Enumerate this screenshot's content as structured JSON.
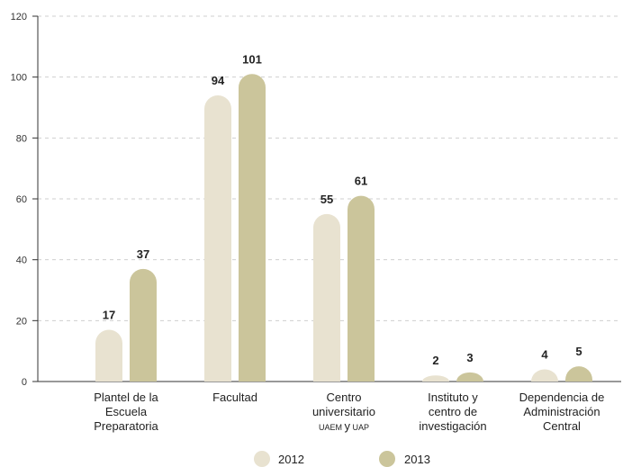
{
  "chart_data": {
    "type": "bar",
    "categories": [
      [
        "Plantel de la",
        "Escuela",
        "Preparatoria"
      ],
      [
        "Facultad"
      ],
      [
        "Centro",
        "universitario",
        "UAEM y UAP"
      ],
      [
        "Instituto y",
        "centro de",
        "investigación"
      ],
      [
        "Dependencia de",
        "Administración",
        "Central"
      ]
    ],
    "series": [
      {
        "name": "2012",
        "values": [
          17,
          94,
          55,
          2,
          4
        ],
        "color": "#e8e2d0"
      },
      {
        "name": "2013",
        "values": [
          37,
          101,
          61,
          3,
          5
        ],
        "color": "#cbc59b"
      }
    ],
    "ylim": [
      0,
      120
    ],
    "yticks": [
      0,
      20,
      40,
      60,
      80,
      100,
      120
    ],
    "grid": true,
    "legend_position": "bottom-center",
    "title": "",
    "xlabel": "",
    "ylabel": ""
  }
}
